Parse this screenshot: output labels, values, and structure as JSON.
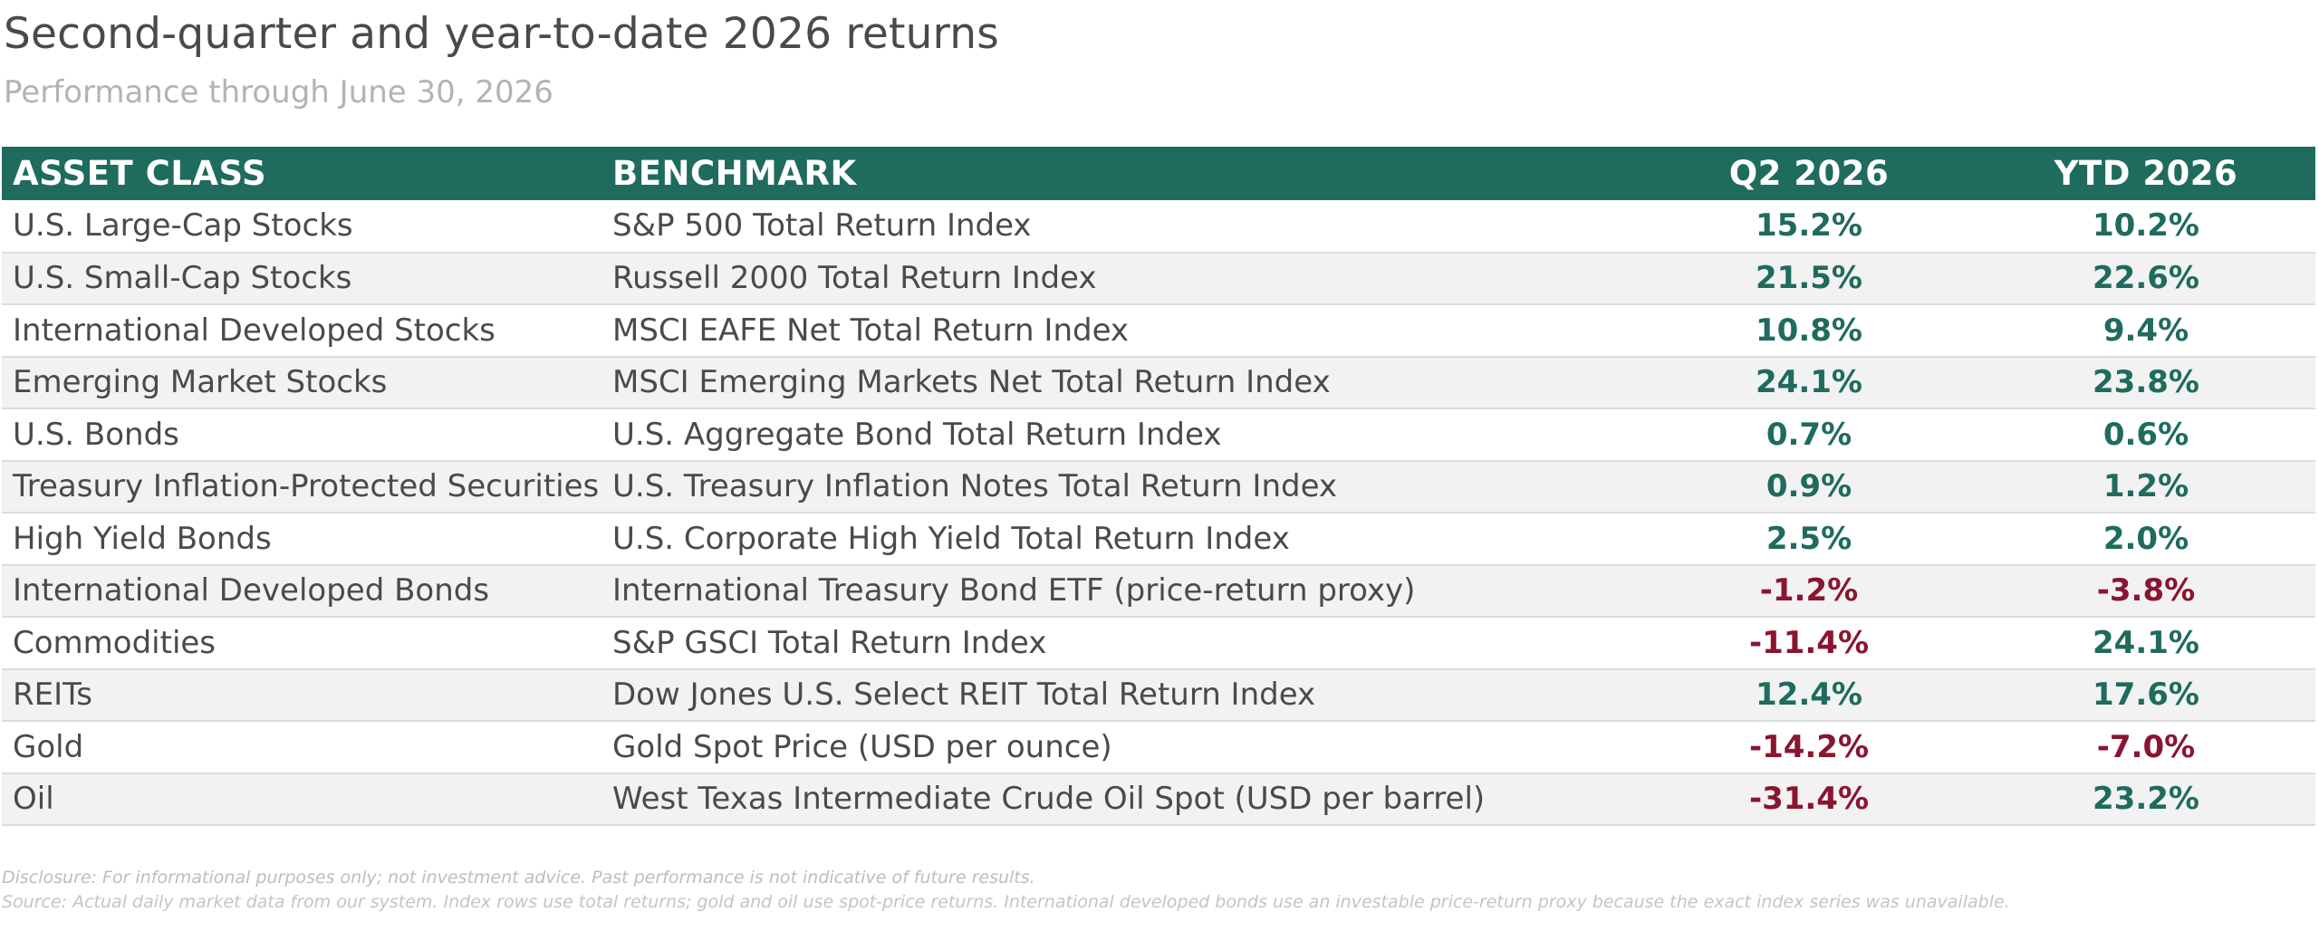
{
  "title": "Second-quarter and year-to-date 2026 returns",
  "subtitle": "Performance through June 30, 2026",
  "table": {
    "headers": {
      "asset_class": "ASSET CLASS",
      "benchmark": "BENCHMARK",
      "q2": "Q2 2026",
      "ytd": "YTD 2026"
    },
    "rows": [
      {
        "asset": "U.S. Large-Cap Stocks",
        "benchmark": "S&P 500 Total Return Index",
        "q2": "15.2%",
        "ytd": "10.2%"
      },
      {
        "asset": "U.S. Small-Cap Stocks",
        "benchmark": "Russell 2000 Total Return Index",
        "q2": "21.5%",
        "ytd": "22.6%"
      },
      {
        "asset": "International Developed Stocks",
        "benchmark": "MSCI EAFE Net Total Return Index",
        "q2": "10.8%",
        "ytd": "9.4%"
      },
      {
        "asset": "Emerging Market Stocks",
        "benchmark": "MSCI Emerging Markets Net Total Return Index",
        "q2": "24.1%",
        "ytd": "23.8%"
      },
      {
        "asset": "U.S. Bonds",
        "benchmark": "U.S. Aggregate Bond Total Return Index",
        "q2": "0.7%",
        "ytd": "0.6%"
      },
      {
        "asset": "Treasury Inflation-Protected Securities",
        "benchmark": "U.S. Treasury Inflation Notes Total Return Index",
        "q2": "0.9%",
        "ytd": "1.2%"
      },
      {
        "asset": "High Yield Bonds",
        "benchmark": "U.S. Corporate High Yield Total Return Index",
        "q2": "2.5%",
        "ytd": "2.0%"
      },
      {
        "asset": "International Developed Bonds",
        "benchmark": "International Treasury Bond ETF (price-return proxy)",
        "q2": "-1.2%",
        "ytd": "-3.8%"
      },
      {
        "asset": "Commodities",
        "benchmark": "S&P GSCI Total Return Index",
        "q2": "-11.4%",
        "ytd": "24.1%"
      },
      {
        "asset": "REITs",
        "benchmark": "Dow Jones U.S. Select REIT Total Return Index",
        "q2": "12.4%",
        "ytd": "17.6%"
      },
      {
        "asset": "Gold",
        "benchmark": "Gold Spot Price (USD per ounce)",
        "q2": "-14.2%",
        "ytd": "-7.0%"
      },
      {
        "asset": "Oil",
        "benchmark": "West Texas Intermediate Crude Oil Spot (USD per barrel)",
        "q2": "-31.4%",
        "ytd": "23.2%"
      }
    ]
  },
  "footnotes": {
    "disclosure": "Disclosure: For informational purposes only; not investment advice. Past performance is not indicative of future results.",
    "source": "Source: Actual daily market data from our system. Index rows use total returns; gold and oil use spot-price returns. International developed bonds use an investable price-return proxy because the exact index series was unavailable."
  },
  "colors": {
    "header_bg": "#1f6b5e",
    "positive": "#1f6b5e",
    "negative": "#8a1530"
  }
}
